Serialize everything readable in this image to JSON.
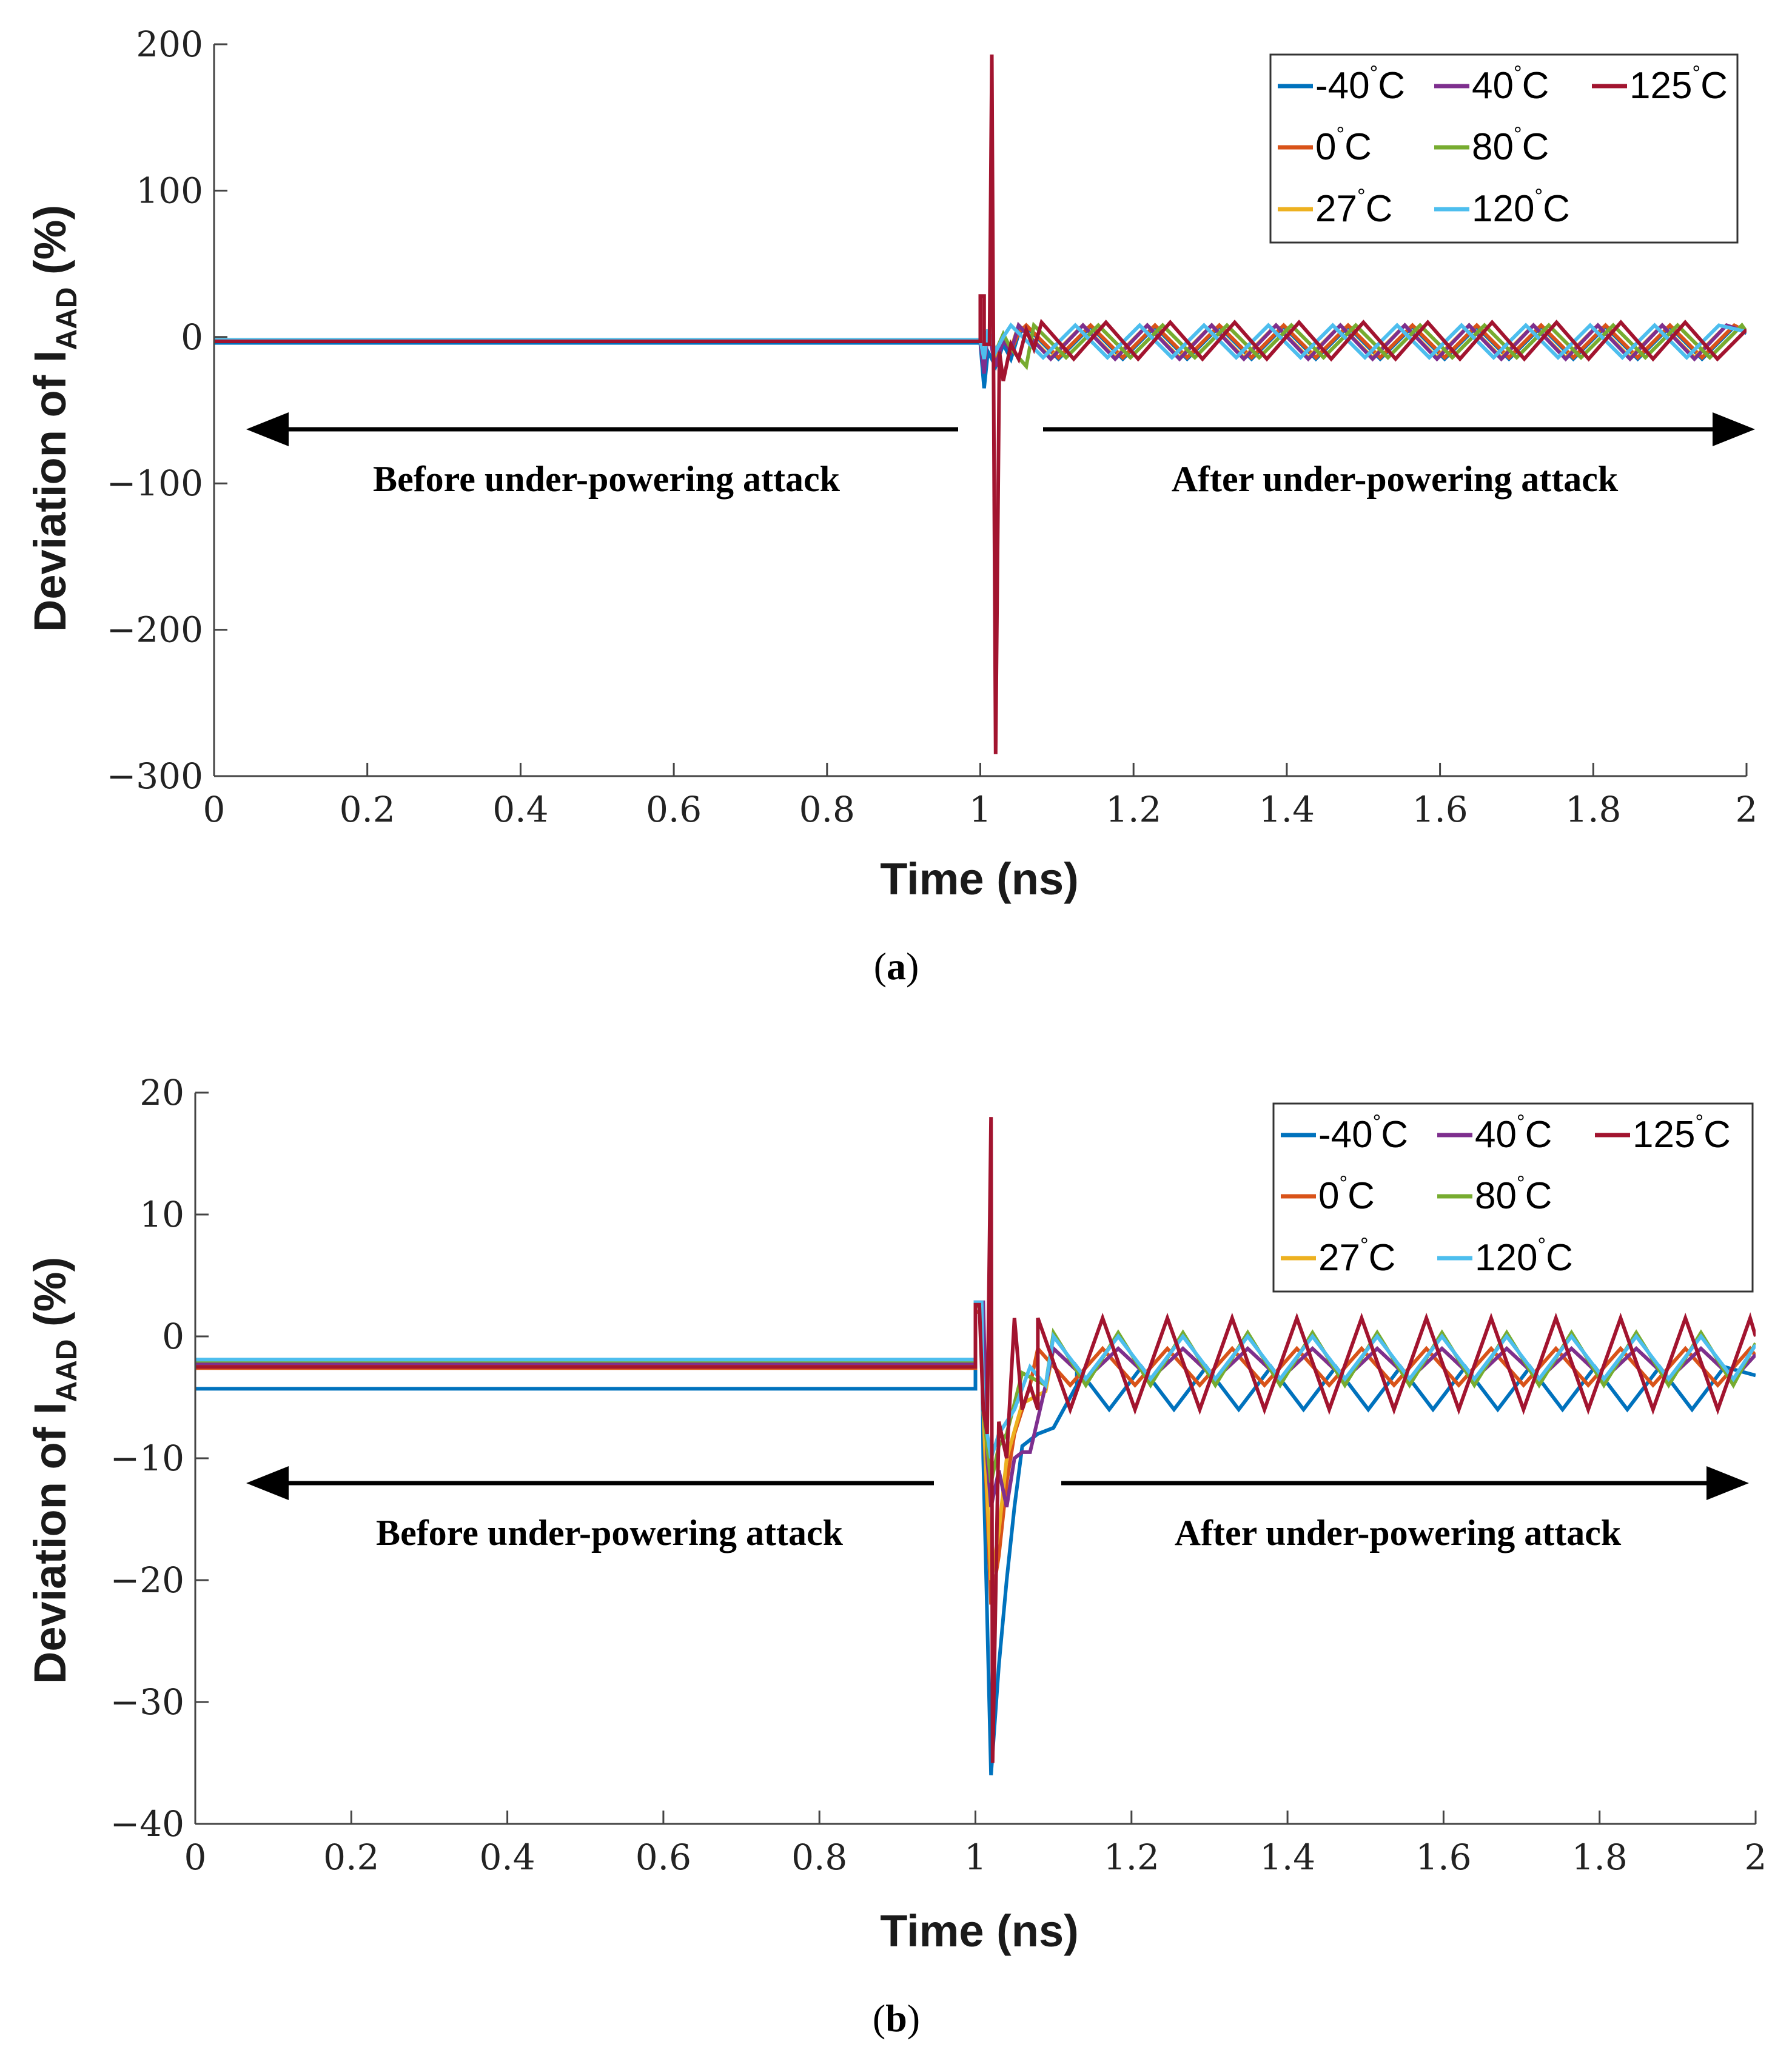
{
  "colors": {
    "-40C": "#0072BD",
    "0C": "#D95319",
    "27C": "#EDB120",
    "40C": "#7E2F8E",
    "80C": "#77AC30",
    "120C": "#4DBEEE",
    "125C": "#A2142F"
  },
  "chart_data": [
    {
      "type": "line",
      "panel": "a",
      "caption_letter": "a",
      "xlabel": "Time (ns)",
      "ylabel_main": "Deviation of I",
      "ylabel_sub": "AAD",
      "ylabel_tail": " (%)",
      "xlim": [
        0,
        2
      ],
      "ylim": [
        -300,
        200
      ],
      "xticks": [
        0,
        0.2,
        0.4,
        0.6,
        0.8,
        1,
        1.2,
        1.4,
        1.6,
        1.8,
        2
      ],
      "xtick_labels": [
        "0",
        "0.2",
        "0.4",
        "0.6",
        "0.8",
        "1",
        "1.2",
        "1.4",
        "1.6",
        "1.8",
        "2"
      ],
      "yticks": [
        -300,
        -200,
        -100,
        0,
        100,
        200
      ],
      "ytick_labels": [
        "−300",
        "−200",
        "−100",
        "0",
        "100",
        "200"
      ],
      "annotation_before": "Before under-powering attack",
      "annotation_after": "After under-powering attack",
      "legend": [
        {
          "key": "-40C",
          "label": "-40",
          "unit": "C"
        },
        {
          "key": "40C",
          "label": "40",
          "unit": "C"
        },
        {
          "key": "125C",
          "label": "125",
          "unit": "C"
        },
        {
          "key": "0C",
          "label": "0",
          "unit": "C"
        },
        {
          "key": "80C",
          "label": "80",
          "unit": "C"
        },
        {
          "key": "27C",
          "label": "27",
          "unit": "C"
        },
        {
          "key": "120C",
          "label": "120",
          "unit": "C"
        }
      ],
      "series": [
        {
          "key": "-40C",
          "name": "-40°C",
          "baseline": -4,
          "spike": [
            [
              1.0,
              -4
            ],
            [
              1.005,
              -35
            ],
            [
              1.01,
              -10
            ],
            [
              1.02,
              -20
            ],
            [
              1.03,
              -5
            ],
            [
              1.04,
              -15
            ],
            [
              1.05,
              2
            ]
          ],
          "osc_start": 1.06,
          "osc_high": 7,
          "osc_low": -15,
          "osc_period": 0.084,
          "osc_phase": 0.03
        },
        {
          "key": "0C",
          "name": "0°C",
          "baseline": -3,
          "spike": [
            [
              1.0,
              -3
            ],
            [
              1.005,
              -20
            ],
            [
              1.01,
              5
            ],
            [
              1.02,
              -15
            ],
            [
              1.03,
              0
            ],
            [
              1.04,
              -10
            ],
            [
              1.05,
              3
            ]
          ],
          "osc_start": 1.06,
          "osc_high": 8,
          "osc_low": -14,
          "osc_period": 0.084,
          "osc_phase": 0.035
        },
        {
          "key": "27C",
          "name": "27°C",
          "baseline": -2.5,
          "spike": [
            [
              1.0,
              -2.5
            ],
            [
              1.005,
              -18
            ],
            [
              1.01,
              5
            ],
            [
              1.02,
              -12
            ],
            [
              1.03,
              0
            ],
            [
              1.04,
              -8
            ]
          ],
          "osc_start": 1.05,
          "osc_high": 8,
          "osc_low": -14,
          "osc_period": 0.084,
          "osc_phase": 0.04
        },
        {
          "key": "40C",
          "name": "40°C",
          "baseline": -3,
          "spike": [
            [
              1.0,
              -3
            ],
            [
              1.005,
              -25
            ],
            [
              1.01,
              5
            ],
            [
              1.02,
              -20
            ],
            [
              1.03,
              -2
            ],
            [
              1.04,
              -10
            ]
          ],
          "osc_start": 1.05,
          "osc_high": 8,
          "osc_low": -15,
          "osc_period": 0.084,
          "osc_phase": 0.045
        },
        {
          "key": "80C",
          "name": "80°C",
          "baseline": -2,
          "spike": [
            [
              1.0,
              -2
            ],
            [
              1.005,
              -15
            ],
            [
              1.01,
              5
            ],
            [
              1.02,
              -10
            ],
            [
              1.03,
              2
            ],
            [
              1.04,
              -8
            ],
            [
              1.06,
              -20
            ]
          ],
          "osc_start": 1.07,
          "osc_high": 8,
          "osc_low": -14,
          "osc_period": 0.084,
          "osc_phase": 0.05
        },
        {
          "key": "120C",
          "name": "120°C",
          "baseline": -2,
          "spike": [
            [
              1.0,
              -2
            ],
            [
              1.005,
              -15
            ],
            [
              1.01,
              5
            ],
            [
              1.02,
              -10
            ],
            [
              1.03,
              0
            ]
          ],
          "osc_start": 1.04,
          "osc_high": 8,
          "osc_low": -14,
          "osc_period": 0.084,
          "osc_phase": 0.055
        },
        {
          "key": "125C",
          "name": "125°C",
          "baseline": -3,
          "spike": [
            [
              1.0,
              -3
            ],
            [
              1.0,
              28
            ],
            [
              1.005,
              28
            ],
            [
              1.005,
              -5
            ],
            [
              1.012,
              -5
            ],
            [
              1.015,
              193
            ],
            [
              1.02,
              -285
            ],
            [
              1.025,
              -10
            ],
            [
              1.03,
              -30
            ],
            [
              1.04,
              -5
            ],
            [
              1.05,
              -15
            ],
            [
              1.06,
              5
            ],
            [
              1.07,
              -8
            ]
          ],
          "osc_start": 1.08,
          "osc_high": 10,
          "osc_low": -15,
          "osc_period": 0.084,
          "osc_phase": 0.06
        }
      ]
    },
    {
      "type": "line",
      "panel": "b",
      "caption_letter": "b",
      "xlabel": "Time (ns)",
      "ylabel_main": "Deviation of I",
      "ylabel_sub": "AAD",
      "ylabel_tail": " (%)",
      "xlim": [
        0,
        2
      ],
      "ylim": [
        -40,
        20
      ],
      "xticks": [
        0,
        0.2,
        0.4,
        0.6,
        0.8,
        1,
        1.2,
        1.4,
        1.6,
        1.8,
        2
      ],
      "xtick_labels": [
        "0",
        "0.2",
        "0.4",
        "0.6",
        "0.8",
        "1",
        "1.2",
        "1.4",
        "1.6",
        "1.8",
        "2"
      ],
      "yticks": [
        -40,
        -30,
        -20,
        -10,
        0,
        10,
        20
      ],
      "ytick_labels": [
        "−40",
        "−30",
        "−20",
        "−10",
        "0",
        "10",
        "20"
      ],
      "annotation_before": "Before under-powering attack",
      "annotation_after": "After under-powering attack",
      "legend": [
        {
          "key": "-40C",
          "label": "-40",
          "unit": "C"
        },
        {
          "key": "40C",
          "label": "40",
          "unit": "C"
        },
        {
          "key": "125C",
          "label": "125",
          "unit": "C"
        },
        {
          "key": "0C",
          "label": "0",
          "unit": "C"
        },
        {
          "key": "80C",
          "label": "80",
          "unit": "C"
        },
        {
          "key": "27C",
          "label": "27",
          "unit": "C"
        },
        {
          "key": "120C",
          "label": "120",
          "unit": "C"
        }
      ],
      "series": [
        {
          "key": "-40C",
          "name": "-40°C",
          "baseline": -4.3,
          "spike": [
            [
              1.0,
              -4.3
            ],
            [
              1.0,
              2
            ],
            [
              1.008,
              2
            ],
            [
              1.01,
              -10
            ],
            [
              1.02,
              -36
            ],
            [
              1.03,
              -27
            ],
            [
              1.04,
              -20
            ],
            [
              1.05,
              -14
            ],
            [
              1.06,
              -9
            ],
            [
              1.08,
              -8
            ],
            [
              1.1,
              -7.5
            ],
            [
              1.13,
              -4
            ]
          ],
          "osc_start": 1.13,
          "osc_high": -2.5,
          "osc_low": -6,
          "osc_period": 0.083,
          "osc_phase": 0.0
        },
        {
          "key": "0C",
          "name": "0°C",
          "baseline": -2.6,
          "spike": [
            [
              1.0,
              -2.6
            ],
            [
              1.0,
              2
            ],
            [
              1.008,
              2
            ],
            [
              1.01,
              -6
            ],
            [
              1.02,
              -22
            ],
            [
              1.03,
              -18
            ],
            [
              1.04,
              -12
            ],
            [
              1.05,
              -8
            ],
            [
              1.07,
              -4
            ]
          ],
          "osc_start": 1.08,
          "osc_high": -1,
          "osc_low": -4,
          "osc_period": 0.083,
          "osc_phase": 0.02
        },
        {
          "key": "27C",
          "name": "27°C",
          "baseline": -2.3,
          "spike": [
            [
              1.0,
              -2.3
            ],
            [
              1.0,
              2.5
            ],
            [
              1.008,
              2.5
            ],
            [
              1.01,
              -6
            ],
            [
              1.02,
              -20
            ],
            [
              1.03,
              -16
            ],
            [
              1.04,
              -10
            ],
            [
              1.06,
              -5.5
            ],
            [
              1.09,
              -4.5
            ]
          ],
          "osc_start": 1.1,
          "osc_high": -1,
          "osc_low": -3.5,
          "osc_period": 0.083,
          "osc_phase": 0.03
        },
        {
          "key": "40C",
          "name": "40°C",
          "baseline": -2.2,
          "spike": [
            [
              1.0,
              -2.2
            ],
            [
              1.0,
              2.8
            ],
            [
              1.01,
              2.8
            ],
            [
              1.015,
              -10
            ],
            [
              1.02,
              -14
            ],
            [
              1.03,
              -11
            ],
            [
              1.04,
              -14
            ],
            [
              1.05,
              -10
            ],
            [
              1.06,
              -9.5
            ],
            [
              1.07,
              -9.5
            ],
            [
              1.09,
              -4
            ]
          ],
          "osc_start": 1.1,
          "osc_high": -1,
          "osc_low": -3.5,
          "osc_period": 0.083,
          "osc_phase": 0.045
        },
        {
          "key": "80C",
          "name": "80°C",
          "baseline": -2.0,
          "spike": [
            [
              1.0,
              -2.0
            ],
            [
              1.0,
              2.5
            ],
            [
              1.008,
              2.5
            ],
            [
              1.01,
              -6
            ],
            [
              1.02,
              -12
            ],
            [
              1.03,
              -9
            ],
            [
              1.04,
              -8
            ],
            [
              1.06,
              -3
            ],
            [
              1.09,
              -4
            ]
          ],
          "osc_start": 1.1,
          "osc_high": 0.3,
          "osc_low": -4,
          "osc_period": 0.083,
          "osc_phase": 0.06
        },
        {
          "key": "120C",
          "name": "120°C",
          "baseline": -1.9,
          "spike": [
            [
              1.0,
              -1.9
            ],
            [
              1.0,
              2.8
            ],
            [
              1.008,
              2.8
            ],
            [
              1.01,
              -6
            ],
            [
              1.02,
              -10
            ],
            [
              1.03,
              -8
            ],
            [
              1.05,
              -6
            ],
            [
              1.07,
              -2.5
            ],
            [
              1.09,
              -4
            ]
          ],
          "osc_start": 1.1,
          "osc_high": 0,
          "osc_low": -3.5,
          "osc_period": 0.083,
          "osc_phase": 0.07
        },
        {
          "key": "125C",
          "name": "125°C",
          "baseline": -2.5,
          "spike": [
            [
              1.0,
              -2.5
            ],
            [
              1.0,
              2.6
            ],
            [
              1.005,
              2.6
            ],
            [
              1.01,
              -6
            ],
            [
              1.015,
              -8
            ],
            [
              1.02,
              18
            ],
            [
              1.022,
              -35
            ],
            [
              1.03,
              -7
            ],
            [
              1.04,
              -10
            ],
            [
              1.05,
              1.5
            ],
            [
              1.06,
              -6
            ],
            [
              1.07,
              -4
            ],
            [
              1.08,
              -6
            ]
          ],
          "osc_start": 1.08,
          "osc_high": 1.5,
          "osc_low": -6,
          "osc_period": 0.083,
          "osc_phase": 0.0
        }
      ]
    }
  ]
}
